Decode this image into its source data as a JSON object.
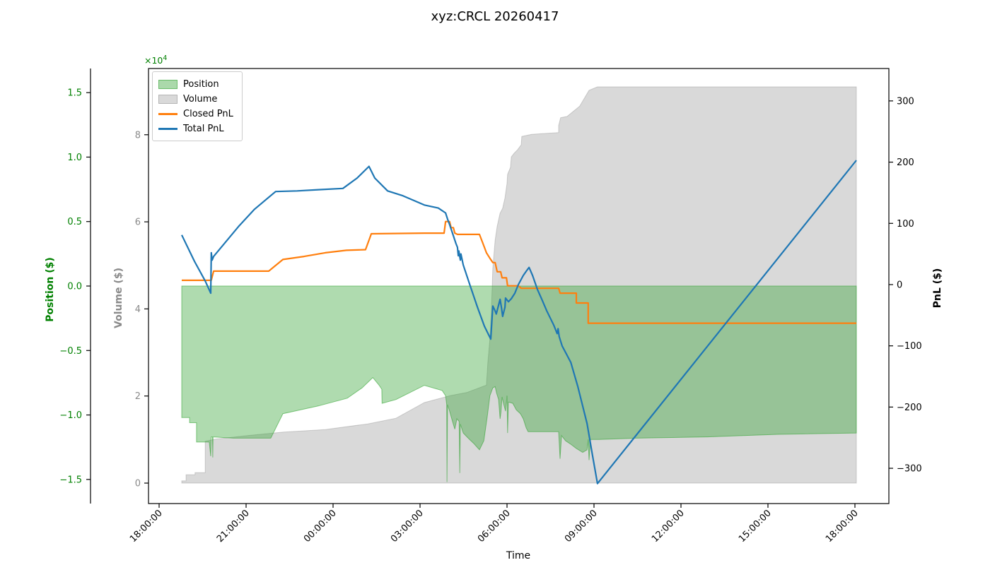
{
  "title": "xyz:CRCL 20260417",
  "legend": {
    "items": [
      {
        "label": "Position",
        "swatch": "patch",
        "fill": "rgba(44,160,44,0.40)",
        "edge": "rgba(44,160,44,0.50)"
      },
      {
        "label": "Volume",
        "swatch": "patch",
        "fill": "rgba(128,128,128,0.30)",
        "edge": "rgba(128,128,128,0.40)"
      },
      {
        "label": "Closed PnL",
        "swatch": "line",
        "fill": "#ff7f0e",
        "edge": "#ff7f0e"
      },
      {
        "label": "Total PnL",
        "swatch": "line",
        "fill": "#1f77b4",
        "edge": "#1f77b4"
      }
    ]
  },
  "chart_data": {
    "type": "mixed-area-line",
    "title": "xyz:CRCL 20260417",
    "xlabel": "Time",
    "grid": false,
    "legend_position": "upper-left",
    "axes": {
      "x": {
        "label": "Time",
        "range": [
          17.634,
          43.171
        ],
        "ticks": [
          {
            "v": 18,
            "label": "18:00:00"
          },
          {
            "v": 21,
            "label": "21:00:00"
          },
          {
            "v": 24,
            "label": "00:00:00"
          },
          {
            "v": 27,
            "label": "03:00:00"
          },
          {
            "v": 30,
            "label": "06:00:00"
          },
          {
            "v": 33,
            "label": "09:00:00"
          },
          {
            "v": 36,
            "label": "12:00:00"
          },
          {
            "v": 39,
            "label": "15:00:00"
          },
          {
            "v": 42,
            "label": "18:00:00"
          }
        ]
      },
      "position": {
        "label": "Position ($)",
        "color": "#008000",
        "offset_base": "×10",
        "offset_exp": "4",
        "range": [
          -1.687,
          1.687
        ],
        "ticks": [
          {
            "v": 1.5,
            "label": "1.5"
          },
          {
            "v": 1.0,
            "label": "1.0"
          },
          {
            "v": 0.5,
            "label": "0.5"
          },
          {
            "v": 0.0,
            "label": "0.0"
          },
          {
            "v": -0.5,
            "label": "−0.5"
          },
          {
            "v": -1.0,
            "label": "−1.0"
          },
          {
            "v": -1.5,
            "label": "−1.5"
          }
        ]
      },
      "volume": {
        "label": "Volume ($)",
        "color": "#8a8a8a",
        "range": [
          -0.47,
          9.521
        ],
        "ticks": [
          {
            "v": 8,
            "label": "8"
          },
          {
            "v": 6,
            "label": "6"
          },
          {
            "v": 4,
            "label": "4"
          },
          {
            "v": 2,
            "label": "2"
          },
          {
            "v": 0,
            "label": "0"
          }
        ]
      },
      "pnl": {
        "label": "PnL ($)",
        "color": "#000000",
        "range": [
          -357.6,
          352.9
        ],
        "ticks": [
          {
            "v": 300,
            "label": "300"
          },
          {
            "v": 200,
            "label": "200"
          },
          {
            "v": 100,
            "label": "100"
          },
          {
            "v": 0,
            "label": "0"
          },
          {
            "v": -100,
            "label": "−100"
          },
          {
            "v": -200,
            "label": "−200"
          },
          {
            "v": -300,
            "label": "−300"
          }
        ]
      }
    },
    "series": {
      "position": {
        "name": "Position",
        "axis": "position",
        "kind": "area-from-zero",
        "fill": "rgba(44,160,44,0.38)",
        "edge": "rgba(44,160,44,0.55)",
        "points": [
          [
            18.78,
            -1.02
          ],
          [
            19.05,
            -1.02
          ],
          [
            19.05,
            -1.06
          ],
          [
            19.29,
            -1.06
          ],
          [
            19.29,
            -1.21
          ],
          [
            19.73,
            -1.21
          ],
          [
            19.78,
            -1.32
          ],
          [
            19.8,
            -1.17
          ],
          [
            19.84,
            -1.17
          ],
          [
            19.85,
            -1.33
          ],
          [
            19.86,
            -1.17
          ],
          [
            20.56,
            -1.18
          ],
          [
            21.85,
            -1.18
          ],
          [
            22.27,
            -0.99
          ],
          [
            23.49,
            -0.93
          ],
          [
            24.49,
            -0.87
          ],
          [
            25.0,
            -0.79
          ],
          [
            25.37,
            -0.71
          ],
          [
            25.59,
            -0.77
          ],
          [
            25.68,
            -0.8
          ],
          [
            25.69,
            -0.91
          ],
          [
            26.17,
            -0.88
          ],
          [
            27.15,
            -0.77
          ],
          [
            27.76,
            -0.81
          ],
          [
            27.88,
            -0.85
          ],
          [
            27.92,
            -0.92
          ],
          [
            27.93,
            -1.52
          ],
          [
            27.95,
            -0.92
          ],
          [
            28.02,
            -0.97
          ],
          [
            28.12,
            -1.05
          ],
          [
            28.2,
            -1.11
          ],
          [
            28.27,
            -1.03
          ],
          [
            28.35,
            -1.05
          ],
          [
            28.37,
            -1.45
          ],
          [
            28.39,
            -1.07
          ],
          [
            28.49,
            -1.14
          ],
          [
            28.66,
            -1.18
          ],
          [
            28.85,
            -1.22
          ],
          [
            29.05,
            -1.27
          ],
          [
            29.2,
            -1.2
          ],
          [
            29.32,
            -1.01
          ],
          [
            29.41,
            -0.85
          ],
          [
            29.51,
            -0.79
          ],
          [
            29.59,
            -0.78
          ],
          [
            29.64,
            -0.83
          ],
          [
            29.71,
            -0.88
          ],
          [
            29.76,
            -1.03
          ],
          [
            29.79,
            -0.98
          ],
          [
            29.83,
            -0.86
          ],
          [
            29.89,
            -0.92
          ],
          [
            29.95,
            -0.97
          ],
          [
            30.0,
            -0.85
          ],
          [
            30.02,
            -1.14
          ],
          [
            30.05,
            -0.9
          ],
          [
            30.2,
            -0.91
          ],
          [
            30.32,
            -0.96
          ],
          [
            30.46,
            -0.99
          ],
          [
            30.56,
            -1.03
          ],
          [
            30.66,
            -1.1
          ],
          [
            30.73,
            -1.13
          ],
          [
            31.78,
            -1.13
          ],
          [
            31.83,
            -1.34
          ],
          [
            31.88,
            -1.16
          ],
          [
            32.02,
            -1.2
          ],
          [
            32.22,
            -1.23
          ],
          [
            32.39,
            -1.26
          ],
          [
            32.61,
            -1.29
          ],
          [
            32.76,
            -1.27
          ],
          [
            32.8,
            -1.19
          ],
          [
            32.83,
            -1.35
          ],
          [
            32.88,
            -1.19
          ],
          [
            33.17,
            -1.19
          ],
          [
            34.46,
            -1.18
          ],
          [
            36.9,
            -1.17
          ],
          [
            39.34,
            -1.15
          ],
          [
            42.05,
            -1.14
          ]
        ]
      },
      "volume": {
        "name": "Volume",
        "axis": "volume",
        "kind": "area-from-zero",
        "fill": "rgba(128,128,128,0.30)",
        "edge": "rgba(128,128,128,0.35)",
        "points": [
          [
            18.78,
            0.05
          ],
          [
            18.93,
            0.05
          ],
          [
            18.93,
            0.19
          ],
          [
            19.24,
            0.19
          ],
          [
            19.24,
            0.24
          ],
          [
            19.59,
            0.24
          ],
          [
            19.59,
            0.96
          ],
          [
            19.95,
            1.01
          ],
          [
            21.05,
            1.09
          ],
          [
            22.27,
            1.17
          ],
          [
            23.73,
            1.23
          ],
          [
            25.2,
            1.36
          ],
          [
            26.17,
            1.49
          ],
          [
            27.15,
            1.85
          ],
          [
            28.05,
            2.01
          ],
          [
            28.61,
            2.08
          ],
          [
            29.29,
            2.25
          ],
          [
            29.34,
            2.77
          ],
          [
            29.41,
            3.31
          ],
          [
            29.46,
            3.96
          ],
          [
            29.51,
            4.93
          ],
          [
            29.59,
            5.58
          ],
          [
            29.66,
            5.9
          ],
          [
            29.76,
            6.2
          ],
          [
            29.85,
            6.31
          ],
          [
            29.93,
            6.55
          ],
          [
            30.0,
            6.88
          ],
          [
            30.02,
            7.09
          ],
          [
            30.12,
            7.25
          ],
          [
            30.15,
            7.49
          ],
          [
            30.24,
            7.57
          ],
          [
            30.37,
            7.66
          ],
          [
            30.49,
            7.77
          ],
          [
            30.51,
            7.96
          ],
          [
            30.85,
            8.01
          ],
          [
            31.78,
            8.05
          ],
          [
            31.78,
            8.21
          ],
          [
            31.85,
            8.39
          ],
          [
            32.07,
            8.42
          ],
          [
            32.46,
            8.63
          ],
          [
            32.51,
            8.66
          ],
          [
            32.83,
            9.02
          ],
          [
            33.12,
            9.1
          ],
          [
            42.05,
            9.1
          ]
        ]
      },
      "closed_pnl": {
        "name": "Closed PnL",
        "axis": "pnl",
        "kind": "line",
        "color": "#ff7f0e",
        "width": 2.2,
        "points": [
          [
            18.78,
            7
          ],
          [
            19.8,
            7
          ],
          [
            19.88,
            22
          ],
          [
            21.78,
            22
          ],
          [
            22.27,
            41
          ],
          [
            23.0,
            46
          ],
          [
            23.73,
            52
          ],
          [
            24.46,
            56
          ],
          [
            25.12,
            57
          ],
          [
            25.32,
            83
          ],
          [
            27.15,
            84
          ],
          [
            27.83,
            84
          ],
          [
            27.88,
            103
          ],
          [
            28.02,
            103
          ],
          [
            28.07,
            93
          ],
          [
            28.15,
            93
          ],
          [
            28.2,
            84
          ],
          [
            28.29,
            82
          ],
          [
            29.05,
            82
          ],
          [
            29.17,
            67
          ],
          [
            29.29,
            52
          ],
          [
            29.41,
            43
          ],
          [
            29.51,
            36
          ],
          [
            29.59,
            36
          ],
          [
            29.66,
            21
          ],
          [
            29.78,
            21
          ],
          [
            29.83,
            11
          ],
          [
            29.98,
            11
          ],
          [
            30.02,
            -2
          ],
          [
            30.39,
            -2
          ],
          [
            30.49,
            -6
          ],
          [
            31.78,
            -6
          ],
          [
            31.83,
            -14
          ],
          [
            32.39,
            -14
          ],
          [
            32.39,
            -30
          ],
          [
            32.8,
            -30
          ],
          [
            32.8,
            -63
          ],
          [
            42.05,
            -63
          ]
        ]
      },
      "total_pnl": {
        "name": "Total PnL",
        "axis": "pnl",
        "kind": "line",
        "color": "#1f77b4",
        "width": 2.2,
        "points": [
          [
            18.78,
            81
          ],
          [
            19.22,
            38
          ],
          [
            19.59,
            6
          ],
          [
            19.78,
            -14
          ],
          [
            19.8,
            52
          ],
          [
            19.83,
            40
          ],
          [
            19.88,
            46
          ],
          [
            20.76,
            96
          ],
          [
            21.29,
            123
          ],
          [
            22.02,
            152
          ],
          [
            22.76,
            153
          ],
          [
            23.49,
            155
          ],
          [
            24.34,
            157
          ],
          [
            24.83,
            174
          ],
          [
            25.24,
            193
          ],
          [
            25.44,
            174
          ],
          [
            25.88,
            153
          ],
          [
            26.41,
            145
          ],
          [
            27.15,
            130
          ],
          [
            27.63,
            125
          ],
          [
            27.88,
            117
          ],
          [
            27.95,
            107
          ],
          [
            28.02,
            98
          ],
          [
            28.12,
            84
          ],
          [
            28.24,
            67
          ],
          [
            28.29,
            61
          ],
          [
            28.32,
            47
          ],
          [
            28.34,
            55
          ],
          [
            28.39,
            40
          ],
          [
            28.41,
            50
          ],
          [
            28.49,
            32
          ],
          [
            28.73,
            -2
          ],
          [
            28.98,
            -37
          ],
          [
            29.22,
            -68
          ],
          [
            29.44,
            -89
          ],
          [
            29.51,
            -35
          ],
          [
            29.59,
            -43
          ],
          [
            29.63,
            -48
          ],
          [
            29.76,
            -24
          ],
          [
            29.81,
            -38
          ],
          [
            29.85,
            -52
          ],
          [
            29.93,
            -37
          ],
          [
            29.95,
            -22
          ],
          [
            30.05,
            -28
          ],
          [
            30.15,
            -23
          ],
          [
            30.27,
            -14
          ],
          [
            30.39,
            0
          ],
          [
            30.56,
            15
          ],
          [
            30.68,
            23
          ],
          [
            30.76,
            28
          ],
          [
            30.88,
            15
          ],
          [
            31.05,
            -8
          ],
          [
            31.2,
            -24
          ],
          [
            31.37,
            -43
          ],
          [
            31.61,
            -66
          ],
          [
            31.66,
            -72
          ],
          [
            31.73,
            -80
          ],
          [
            31.76,
            -72
          ],
          [
            31.8,
            -85
          ],
          [
            31.9,
            -100
          ],
          [
            32.2,
            -127
          ],
          [
            32.44,
            -166
          ],
          [
            32.76,
            -227
          ],
          [
            32.95,
            -279
          ],
          [
            33.12,
            -325
          ],
          [
            42.05,
            203
          ]
        ]
      }
    }
  }
}
